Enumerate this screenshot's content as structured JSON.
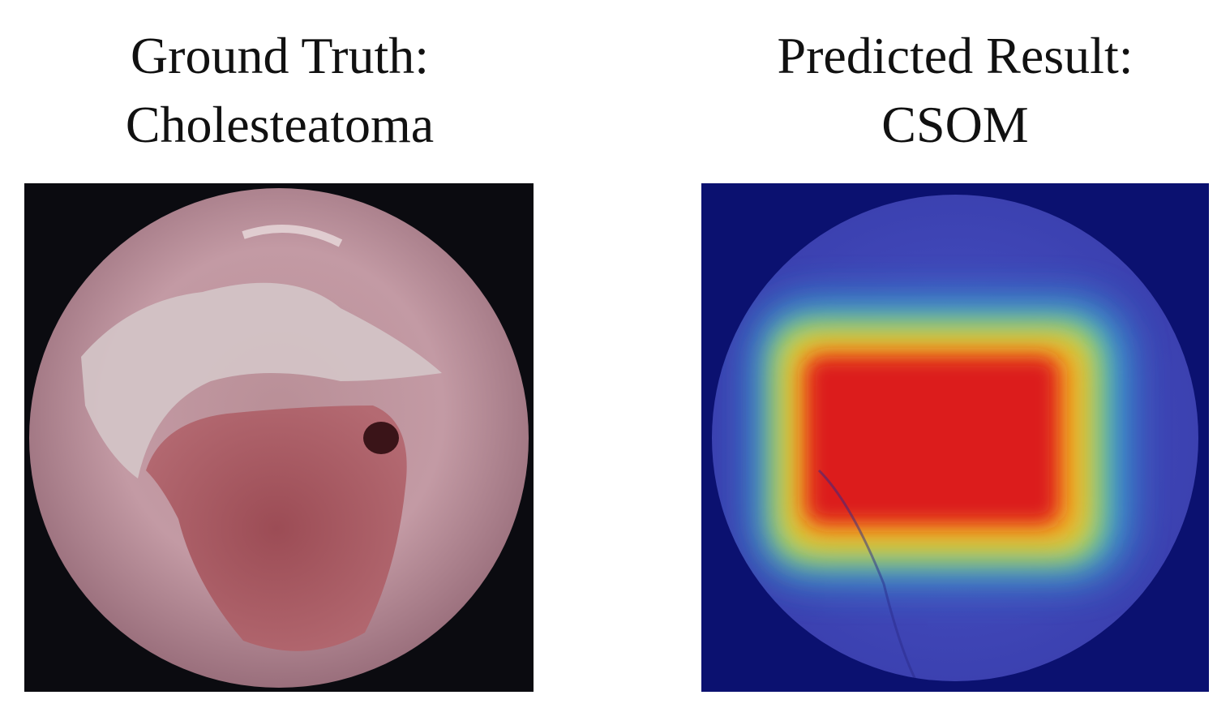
{
  "panels": [
    {
      "title_lines": [
        "Ground Truth:",
        "Cholesteatoma"
      ]
    },
    {
      "title_lines": [
        "Predicted Result:",
        "CSOM"
      ]
    }
  ]
}
